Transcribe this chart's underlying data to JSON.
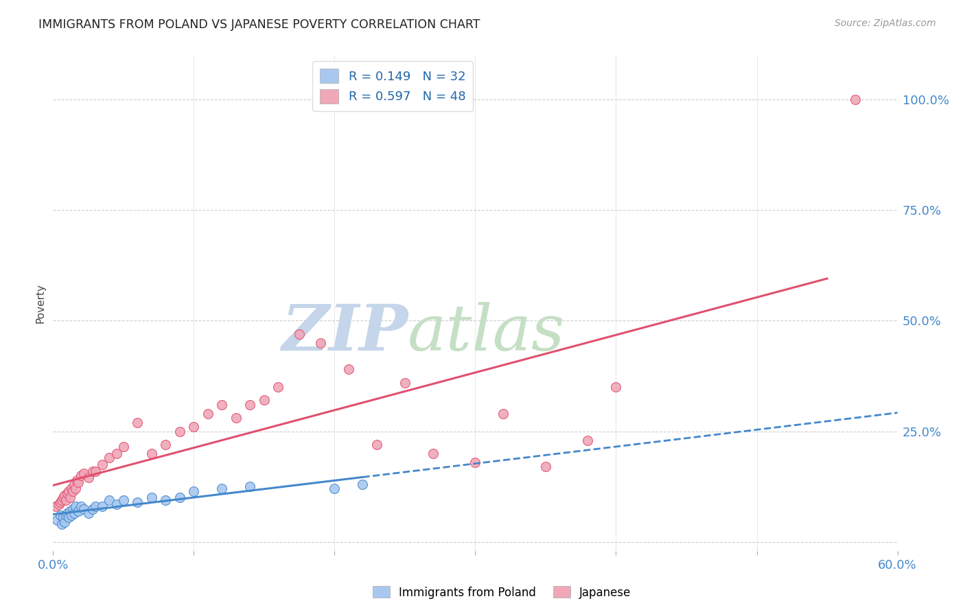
{
  "title": "IMMIGRANTS FROM POLAND VS JAPANESE POVERTY CORRELATION CHART",
  "source": "Source: ZipAtlas.com",
  "ylabel": "Poverty",
  "xlim": [
    0.0,
    0.6
  ],
  "ylim": [
    -0.02,
    1.1
  ],
  "poland_color": "#a8c8f0",
  "japan_color": "#f0a8b8",
  "poland_line_color": "#4488cc",
  "japan_line_color": "#e05070",
  "poland_R": 0.149,
  "poland_N": 32,
  "japan_R": 0.597,
  "japan_N": 48,
  "legend_label_poland": "Immigrants from Poland",
  "legend_label_japan": "Japanese",
  "background_color": "#ffffff",
  "grid_color": "#cccccc",
  "watermark_zip": "ZIP",
  "watermark_atlas": "atlas",
  "watermark_color_zip": "#c8d8ee",
  "watermark_color_atlas": "#c8d8c8",
  "poland_scatter_x": [
    0.003,
    0.005,
    0.006,
    0.007,
    0.008,
    0.009,
    0.01,
    0.011,
    0.012,
    0.013,
    0.014,
    0.015,
    0.016,
    0.018,
    0.02,
    0.022,
    0.025,
    0.028,
    0.03,
    0.035,
    0.04,
    0.045,
    0.05,
    0.06,
    0.07,
    0.08,
    0.09,
    0.1,
    0.12,
    0.14,
    0.2,
    0.22
  ],
  "poland_scatter_y": [
    0.05,
    0.06,
    0.04,
    0.055,
    0.045,
    0.06,
    0.065,
    0.055,
    0.07,
    0.06,
    0.075,
    0.065,
    0.08,
    0.07,
    0.08,
    0.075,
    0.065,
    0.075,
    0.08,
    0.08,
    0.095,
    0.085,
    0.095,
    0.09,
    0.1,
    0.095,
    0.1,
    0.115,
    0.12,
    0.125,
    0.12,
    0.13
  ],
  "japan_scatter_x": [
    0.002,
    0.004,
    0.005,
    0.006,
    0.007,
    0.008,
    0.009,
    0.01,
    0.011,
    0.012,
    0.013,
    0.014,
    0.015,
    0.016,
    0.017,
    0.018,
    0.02,
    0.022,
    0.025,
    0.028,
    0.03,
    0.035,
    0.04,
    0.045,
    0.05,
    0.06,
    0.07,
    0.08,
    0.09,
    0.1,
    0.11,
    0.12,
    0.13,
    0.14,
    0.15,
    0.16,
    0.175,
    0.19,
    0.21,
    0.23,
    0.25,
    0.27,
    0.3,
    0.32,
    0.35,
    0.38,
    0.4,
    0.57
  ],
  "japan_scatter_y": [
    0.08,
    0.085,
    0.09,
    0.095,
    0.1,
    0.105,
    0.095,
    0.11,
    0.115,
    0.1,
    0.12,
    0.115,
    0.13,
    0.12,
    0.14,
    0.135,
    0.15,
    0.155,
    0.145,
    0.16,
    0.16,
    0.175,
    0.19,
    0.2,
    0.215,
    0.27,
    0.2,
    0.22,
    0.25,
    0.26,
    0.29,
    0.31,
    0.28,
    0.31,
    0.32,
    0.35,
    0.47,
    0.45,
    0.39,
    0.22,
    0.36,
    0.2,
    0.18,
    0.29,
    0.17,
    0.23,
    0.35,
    1.0
  ],
  "right_y_ticks": [
    0.0,
    0.25,
    0.5,
    0.75,
    1.0
  ],
  "right_y_labels": [
    "",
    "25.0%",
    "50.0%",
    "75.0%",
    "100.0%"
  ]
}
